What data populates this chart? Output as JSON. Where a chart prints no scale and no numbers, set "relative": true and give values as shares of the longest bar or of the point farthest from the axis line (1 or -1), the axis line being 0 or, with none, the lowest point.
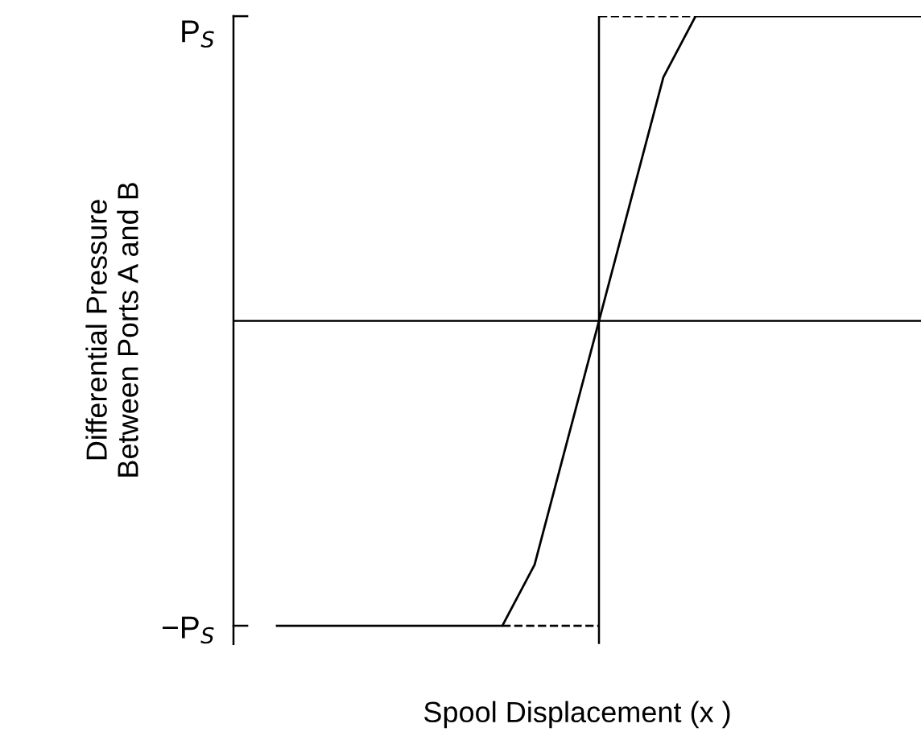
{
  "chart_data": {
    "type": "line",
    "relative": true,
    "xlabel": "Spool Displacement (x )",
    "ylabel": "Differential Pressure\nBetween Ports A and B",
    "categories": [
      null,
      null,
      null,
      null,
      null,
      null,
      null,
      null,
      null,
      null,
      null,
      null,
      null,
      null,
      null,
      null,
      null,
      null,
      null,
      null,
      null
    ],
    "series": [
      {
        "color": "#000000",
        "line_style": "solid",
        "values": [
          -1,
          -1,
          -1,
          -1,
          -1,
          -1,
          -1,
          -1,
          -0.8,
          -0.4,
          0,
          0.4,
          0.8,
          1,
          1,
          1,
          1,
          1,
          1,
          1,
          1
        ]
      },
      {
        "color": "#000000",
        "line_style": "dashed",
        "values": [
          null,
          null,
          null,
          null,
          null,
          null,
          null,
          -1,
          -1,
          -1,
          -1,
          null,
          null,
          null,
          null,
          null,
          null,
          null,
          null,
          null,
          null
        ]
      },
      {
        "color": "#000000",
        "line_style": "dashed",
        "values": [
          null,
          null,
          null,
          null,
          null,
          null,
          null,
          null,
          null,
          null,
          1,
          1,
          1,
          1,
          null,
          null,
          null,
          null,
          null,
          null,
          null
        ]
      }
    ],
    "annotations": [
      "P$_{S}$",
      "−P$_{S}$"
    ],
    "grid": false
  }
}
